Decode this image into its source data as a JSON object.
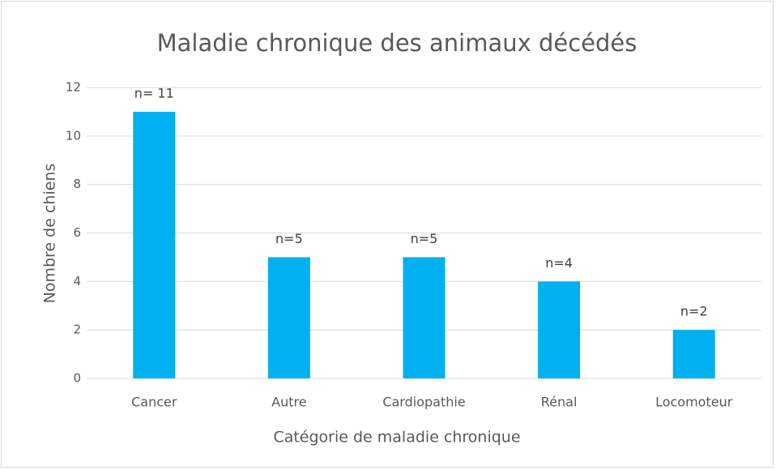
{
  "chart_data": {
    "type": "bar",
    "title": "Maladie chronique des animaux décédés",
    "x_label": "Catégorie de maladie chronique",
    "y_label": "Nombre de chiens",
    "categories": [
      "Cancer",
      "Autre",
      "Cardiopathie",
      "Rénal",
      "Locomoteur"
    ],
    "values": [
      11,
      5,
      5,
      4,
      2
    ],
    "value_labels": [
      "n= 11",
      "n=5",
      "n=5",
      "n=4",
      "n=2"
    ],
    "color": "#00b0f0",
    "ylim": [
      0,
      12
    ],
    "yticks": [
      0,
      2,
      4,
      6,
      8,
      10,
      12
    ],
    "grid": true
  }
}
